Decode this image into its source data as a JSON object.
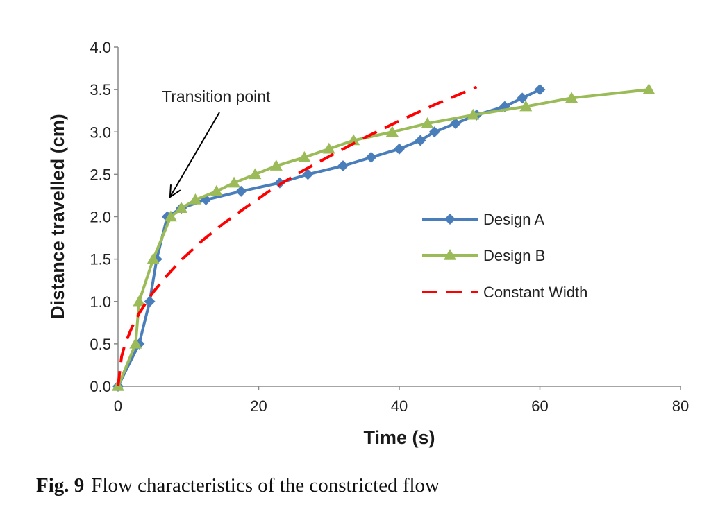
{
  "chart_data": {
    "type": "line",
    "xlabel": "Time (s)",
    "ylabel": "Distance travelled (cm)",
    "xlim": [
      0,
      80
    ],
    "ylim": [
      0,
      4.0
    ],
    "x_ticks": [
      "0",
      "20",
      "40",
      "60",
      "80"
    ],
    "y_ticks": [
      "0.0",
      "0.5",
      "1.0",
      "1.5",
      "2.0",
      "2.5",
      "3.0",
      "3.5",
      "4.0"
    ],
    "grid": false,
    "legend_position": "right",
    "series": [
      {
        "name": "Design A",
        "color": "#4a7ebb",
        "marker": "diamond",
        "line_style": "solid",
        "x": [
          0,
          3,
          4.5,
          5.5,
          7,
          9,
          12.5,
          17.5,
          23,
          27,
          32,
          36,
          40,
          43,
          45,
          48,
          51,
          55,
          57.5,
          60
        ],
        "y": [
          0,
          0.5,
          1.0,
          1.5,
          2.0,
          2.1,
          2.2,
          2.3,
          2.4,
          2.5,
          2.6,
          2.7,
          2.8,
          2.9,
          3.0,
          3.1,
          3.2,
          3.3,
          3.4,
          3.5
        ]
      },
      {
        "name": "Design B",
        "color": "#9bbb59",
        "marker": "triangle",
        "line_style": "solid",
        "x": [
          0,
          2.5,
          3,
          5,
          7.5,
          9,
          11,
          14,
          16.5,
          19.5,
          22.5,
          26.5,
          30,
          33.5,
          39,
          44,
          50.5,
          58,
          64.5,
          75.5
        ],
        "y": [
          0,
          0.5,
          1.0,
          1.5,
          2.0,
          2.1,
          2.2,
          2.3,
          2.4,
          2.5,
          2.6,
          2.7,
          2.8,
          2.9,
          3.0,
          3.1,
          3.2,
          3.3,
          3.4,
          3.5
        ]
      },
      {
        "name": "Constant Width",
        "color": "#ff0000",
        "marker": "none",
        "line_style": "dashed",
        "x": [
          0,
          0.5,
          1,
          2,
          3,
          4,
          5,
          7,
          9,
          12,
          15,
          18,
          22,
          26,
          30,
          35,
          40,
          45,
          51
        ],
        "y": [
          0,
          0.35,
          0.5,
          0.7,
          0.86,
          0.99,
          1.11,
          1.31,
          1.49,
          1.72,
          1.92,
          2.1,
          2.33,
          2.53,
          2.71,
          2.93,
          3.13,
          3.32,
          3.53
        ]
      }
    ],
    "annotation": {
      "text": "Transition point",
      "target_x": 7,
      "target_y": 2.2
    }
  },
  "caption": {
    "label": "Fig. 9",
    "text": "Flow characteristics of the constricted flow"
  }
}
